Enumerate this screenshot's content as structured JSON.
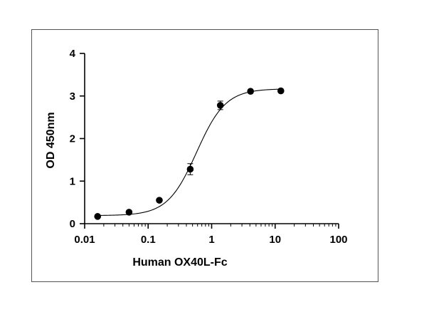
{
  "chart_data": {
    "type": "scatter",
    "title": "",
    "xlabel": "Human OX40L-Fc",
    "ylabel": "OD 450nm",
    "x_scale": "log",
    "xlim": [
      0.01,
      100
    ],
    "ylim": [
      0,
      4
    ],
    "x_ticks": [
      0.01,
      0.1,
      1,
      10,
      100
    ],
    "x_tick_labels": [
      "0.01",
      "0.1",
      "1",
      "10",
      "100"
    ],
    "y_ticks": [
      0,
      1,
      2,
      3,
      4
    ],
    "y_tick_labels": [
      "0",
      "1",
      "2",
      "3",
      "4"
    ],
    "grid": false,
    "legend": "none",
    "series": [
      {
        "x": [
          0.016,
          0.05,
          0.15,
          0.46,
          1.37,
          4.1,
          12.3
        ],
        "y": [
          0.17,
          0.27,
          0.55,
          1.28,
          2.78,
          3.11,
          3.12
        ],
        "error": [
          0.02,
          0.02,
          0.03,
          0.13,
          0.1,
          0.02,
          0.02
        ]
      }
    ],
    "fit_curve": {
      "model": "4PL",
      "bottom": 0.19,
      "top": 3.17,
      "ec50": 0.58,
      "hill": 1.9
    },
    "colors": {
      "marker": "#000000",
      "line": "#000000"
    }
  }
}
